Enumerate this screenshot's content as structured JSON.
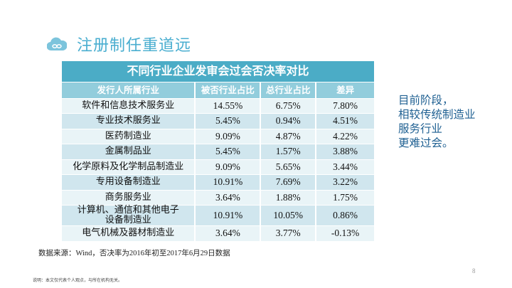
{
  "slide": {
    "title": "注册制任重道远",
    "icon": "cloud-link-icon",
    "page_number": "8"
  },
  "table": {
    "caption": "不同行业企业发审会过会否决率对比",
    "headers": [
      "发行人所属行业",
      "被否行业占比",
      "总行业占比",
      "差异"
    ],
    "rows": [
      [
        "软件和信息技术服务业",
        "14.55%",
        "6.75%",
        "7.80%"
      ],
      [
        "专业技术服务业",
        "5.45%",
        "0.94%",
        "4.51%"
      ],
      [
        "医药制造业",
        "9.09%",
        "4.87%",
        "4.22%"
      ],
      [
        "金属制品业",
        "5.45%",
        "1.57%",
        "3.88%"
      ],
      [
        "化学原料及化学制品制造业",
        "9.09%",
        "5.65%",
        "3.44%"
      ],
      [
        "专用设备制造业",
        "10.91%",
        "7.69%",
        "3.22%"
      ],
      [
        "商务服务业",
        "3.64%",
        "1.88%",
        "1.75%"
      ],
      [
        "计算机、通信和其他电子设备制造业",
        "10.91%",
        "10.05%",
        "0.86%"
      ],
      [
        "电气机械及器材制造业",
        "3.64%",
        "3.77%",
        "-0.13%"
      ]
    ]
  },
  "note": [
    "目前阶段，",
    "相较传统制造业",
    "服务行业",
    "更难过会。"
  ],
  "source": "数据来源：Wind，否决率为2016年初至2017年6月29日数据",
  "disclaimer": "说明：本文仅代表个人观点，与所在机构无关。",
  "colors": {
    "accent": "#4bacc6",
    "header": "#92cddc",
    "note": "#1f6092"
  }
}
